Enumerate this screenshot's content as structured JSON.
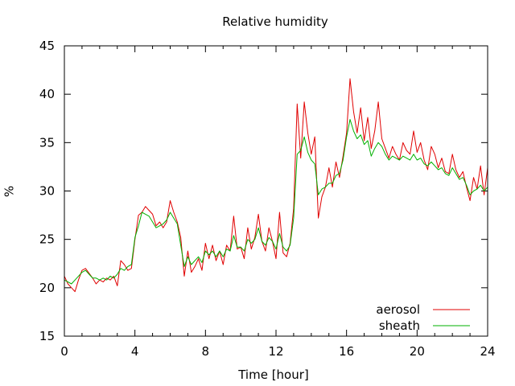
{
  "chart_data": {
    "type": "line",
    "title": "Relative humidity",
    "xlabel": "Time [hour]",
    "ylabel": "%",
    "xlim": [
      0,
      24
    ],
    "ylim": [
      15,
      45
    ],
    "x_ticks": [
      0,
      4,
      8,
      12,
      16,
      20,
      24
    ],
    "y_ticks": [
      15,
      20,
      25,
      30,
      35,
      40,
      45
    ],
    "grid": false,
    "legend_position": "bottom-right",
    "series": [
      {
        "name": "aerosol",
        "color": "#e00000",
        "x": [
          0,
          0.2,
          0.4,
          0.6,
          0.8,
          1.0,
          1.2,
          1.4,
          1.6,
          1.8,
          2.0,
          2.2,
          2.4,
          2.6,
          2.8,
          3.0,
          3.2,
          3.4,
          3.6,
          3.8,
          4.0,
          4.2,
          4.4,
          4.6,
          4.8,
          5.0,
          5.2,
          5.4,
          5.6,
          5.8,
          6.0,
          6.2,
          6.4,
          6.6,
          6.8,
          7.0,
          7.2,
          7.4,
          7.6,
          7.8,
          8.0,
          8.2,
          8.4,
          8.6,
          8.8,
          9.0,
          9.2,
          9.4,
          9.6,
          9.8,
          10.0,
          10.2,
          10.4,
          10.6,
          10.8,
          11.0,
          11.2,
          11.4,
          11.6,
          11.8,
          12.0,
          12.2,
          12.4,
          12.6,
          12.8,
          13.0,
          13.2,
          13.4,
          13.6,
          13.8,
          14.0,
          14.2,
          14.4,
          14.6,
          14.8,
          15.0,
          15.2,
          15.4,
          15.6,
          15.8,
          16.0,
          16.2,
          16.4,
          16.6,
          16.8,
          17.0,
          17.2,
          17.4,
          17.6,
          17.8,
          18.0,
          18.2,
          18.4,
          18.6,
          18.8,
          19.0,
          19.2,
          19.4,
          19.6,
          19.8,
          20.0,
          20.2,
          20.4,
          20.6,
          20.8,
          21.0,
          21.2,
          21.4,
          21.6,
          21.8,
          22.0,
          22.2,
          22.4,
          22.6,
          22.8,
          23.0,
          23.2,
          23.4,
          23.6,
          23.8,
          24.0
        ],
        "values": [
          21.2,
          20.4,
          20.0,
          19.6,
          20.8,
          21.8,
          22.0,
          21.5,
          21.0,
          20.4,
          20.8,
          20.6,
          21.0,
          20.8,
          21.2,
          20.2,
          22.8,
          22.4,
          21.8,
          22.0,
          25.0,
          27.5,
          27.8,
          28.4,
          28.0,
          27.6,
          26.4,
          26.8,
          26.2,
          26.8,
          29.0,
          27.8,
          26.8,
          25.2,
          21.2,
          23.8,
          21.6,
          22.2,
          23.0,
          21.8,
          24.6,
          23.0,
          24.4,
          22.8,
          23.8,
          22.4,
          24.4,
          23.8,
          27.4,
          24.0,
          24.2,
          23.0,
          26.2,
          24.0,
          25.2,
          27.6,
          24.8,
          23.8,
          26.2,
          24.8,
          23.0,
          27.8,
          23.6,
          23.2,
          24.6,
          28.2,
          39.0,
          33.4,
          39.2,
          36.0,
          33.8,
          35.6,
          27.2,
          29.4,
          30.4,
          32.4,
          30.4,
          33.0,
          31.4,
          33.6,
          36.0,
          41.6,
          38.2,
          36.0,
          38.6,
          35.2,
          37.6,
          34.4,
          36.2,
          39.2,
          35.4,
          34.4,
          33.4,
          34.6,
          33.8,
          33.2,
          35.0,
          34.2,
          33.8,
          36.2,
          34.0,
          35.0,
          33.2,
          32.2,
          34.6,
          33.8,
          32.4,
          33.4,
          32.0,
          31.8,
          33.8,
          32.2,
          31.4,
          32.0,
          30.4,
          29.0,
          31.4,
          30.2,
          32.6,
          29.6,
          32.4
        ]
      },
      {
        "name": "sheath",
        "color": "#00b000",
        "x": [
          0,
          0.2,
          0.4,
          0.6,
          0.8,
          1.0,
          1.2,
          1.4,
          1.6,
          1.8,
          2.0,
          2.2,
          2.4,
          2.6,
          2.8,
          3.0,
          3.2,
          3.4,
          3.6,
          3.8,
          4.0,
          4.2,
          4.4,
          4.6,
          4.8,
          5.0,
          5.2,
          5.4,
          5.6,
          5.8,
          6.0,
          6.2,
          6.4,
          6.6,
          6.8,
          7.0,
          7.2,
          7.4,
          7.6,
          7.8,
          8.0,
          8.2,
          8.4,
          8.6,
          8.8,
          9.0,
          9.2,
          9.4,
          9.6,
          9.8,
          10.0,
          10.2,
          10.4,
          10.6,
          10.8,
          11.0,
          11.2,
          11.4,
          11.6,
          11.8,
          12.0,
          12.2,
          12.4,
          12.6,
          12.8,
          13.0,
          13.2,
          13.4,
          13.6,
          13.8,
          14.0,
          14.2,
          14.4,
          14.6,
          14.8,
          15.0,
          15.2,
          15.4,
          15.6,
          15.8,
          16.0,
          16.2,
          16.4,
          16.6,
          16.8,
          17.0,
          17.2,
          17.4,
          17.6,
          17.8,
          18.0,
          18.2,
          18.4,
          18.6,
          18.8,
          19.0,
          19.2,
          19.4,
          19.6,
          19.8,
          20.0,
          20.2,
          20.4,
          20.6,
          20.8,
          21.0,
          21.2,
          21.4,
          21.6,
          21.8,
          22.0,
          22.2,
          22.4,
          22.6,
          22.8,
          23.0,
          23.2,
          23.4,
          23.6,
          23.8,
          24.0
        ],
        "values": [
          20.8,
          20.6,
          20.4,
          20.8,
          21.2,
          21.6,
          21.8,
          21.4,
          21.0,
          21.0,
          20.8,
          21.0,
          20.8,
          21.2,
          21.0,
          21.4,
          22.0,
          21.8,
          22.2,
          22.4,
          25.2,
          26.4,
          27.8,
          27.6,
          27.4,
          26.8,
          26.2,
          26.4,
          26.6,
          27.0,
          27.8,
          27.2,
          26.6,
          24.4,
          22.2,
          23.2,
          22.4,
          22.8,
          23.2,
          22.6,
          23.8,
          23.4,
          23.8,
          23.2,
          23.8,
          23.2,
          24.0,
          23.8,
          25.4,
          24.2,
          24.2,
          23.8,
          25.0,
          24.6,
          25.0,
          26.2,
          24.8,
          24.4,
          25.2,
          24.8,
          24.0,
          25.6,
          24.2,
          23.8,
          24.4,
          27.2,
          33.8,
          34.2,
          35.6,
          34.0,
          33.2,
          32.8,
          29.6,
          30.2,
          30.4,
          30.8,
          30.8,
          31.6,
          31.8,
          33.2,
          35.6,
          37.4,
          36.2,
          35.4,
          35.8,
          34.8,
          35.2,
          33.6,
          34.4,
          35.0,
          34.6,
          33.8,
          33.2,
          33.6,
          33.4,
          33.2,
          33.6,
          33.4,
          33.2,
          33.8,
          33.2,
          33.4,
          32.8,
          32.6,
          33.0,
          32.6,
          32.2,
          32.4,
          31.8,
          31.6,
          32.4,
          31.8,
          31.2,
          31.4,
          30.6,
          29.6,
          30.0,
          30.2,
          30.6,
          30.0,
          30.4
        ]
      }
    ]
  }
}
